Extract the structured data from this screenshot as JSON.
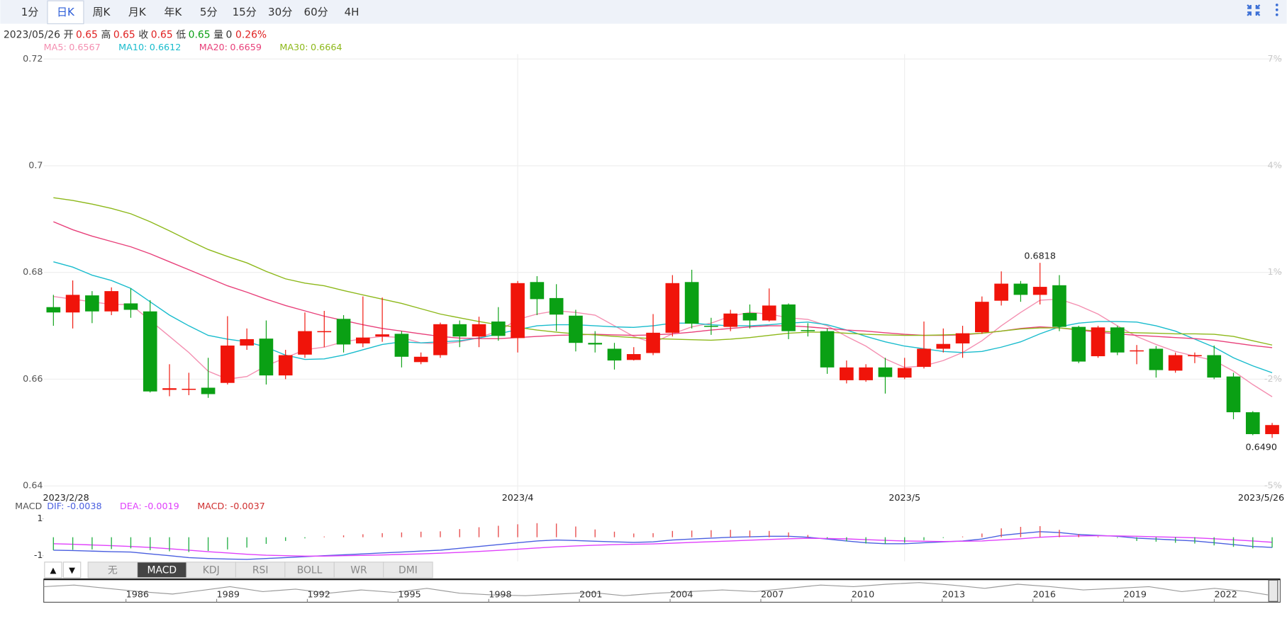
{
  "tabs": {
    "items": [
      "1分",
      "日K",
      "周K",
      "月K",
      "年K",
      "5分",
      "15分",
      "30分",
      "60分",
      "4H"
    ],
    "selected": "日K"
  },
  "ohlc_header": {
    "date": "2023/05/26",
    "items": [
      {
        "label": "开",
        "value": "0.65",
        "color": "#e02020"
      },
      {
        "label": "高",
        "value": "0.65",
        "color": "#e02020"
      },
      {
        "label": "收",
        "value": "0.65",
        "color": "#e02020"
      },
      {
        "label": "低",
        "value": "0.65",
        "color": "#0aa014"
      },
      {
        "label": "量",
        "value": "0",
        "color": "#333333"
      }
    ],
    "change": "0.26%",
    "change_color": "#e02020"
  },
  "chart_data": [
    {
      "type": "candlestick",
      "categories": [
        "2023/2/28",
        null,
        null,
        null,
        null,
        null,
        null,
        null,
        null,
        null,
        null,
        null,
        null,
        null,
        null,
        null,
        null,
        null,
        null,
        null,
        null,
        null,
        null,
        null,
        "2023/4",
        null,
        null,
        null,
        null,
        null,
        null,
        null,
        null,
        null,
        null,
        null,
        null,
        null,
        null,
        null,
        null,
        null,
        null,
        null,
        "2023/5",
        null,
        null,
        null,
        null,
        null,
        null,
        null,
        null,
        null,
        null,
        null,
        null,
        null,
        null,
        null,
        null,
        null,
        null,
        "2023/5/26"
      ],
      "open": [
        0.6735,
        0.6725,
        0.6757,
        0.6727,
        0.6742,
        0.6727,
        0.658,
        0.658,
        0.6584,
        0.6593,
        0.6663,
        0.6676,
        0.6607,
        0.6646,
        0.6688,
        0.6713,
        0.6667,
        0.668,
        0.6685,
        0.6632,
        0.6645,
        0.6703,
        0.668,
        0.6708,
        0.6677,
        0.6782,
        0.6752,
        0.6719,
        0.6668,
        0.6657,
        0.6636,
        0.6649,
        0.6687,
        0.6782,
        0.67,
        0.6698,
        0.6724,
        0.671,
        0.674,
        0.6692,
        0.669,
        0.6598,
        0.6598,
        0.6622,
        0.6603,
        0.6623,
        0.6657,
        0.6667,
        0.6688,
        0.6747,
        0.6779,
        0.6758,
        0.6776,
        0.6698,
        0.6643,
        0.6697,
        0.6652,
        0.6657,
        0.6616,
        0.6643,
        0.6645,
        0.6605,
        0.6538,
        0.6497
      ],
      "high": [
        0.6758,
        0.6785,
        0.6765,
        0.6772,
        0.677,
        0.6748,
        0.6628,
        0.6612,
        0.664,
        0.6718,
        0.6695,
        0.671,
        0.6655,
        0.6725,
        0.6728,
        0.672,
        0.6755,
        0.6753,
        0.669,
        0.665,
        0.6706,
        0.671,
        0.6717,
        0.6735,
        0.6784,
        0.6793,
        0.6778,
        0.673,
        0.669,
        0.6668,
        0.666,
        0.6722,
        0.6795,
        0.6805,
        0.6715,
        0.673,
        0.674,
        0.677,
        0.6742,
        0.6705,
        0.6695,
        0.6635,
        0.6628,
        0.664,
        0.664,
        0.6708,
        0.6695,
        0.67,
        0.6755,
        0.6802,
        0.6784,
        0.6818,
        0.6795,
        0.67,
        0.67,
        0.67,
        0.6664,
        0.6662,
        0.665,
        0.665,
        0.6663,
        0.6612,
        0.654,
        0.6518
      ],
      "low": [
        0.67,
        0.6695,
        0.6705,
        0.672,
        0.6715,
        0.6575,
        0.6568,
        0.657,
        0.6565,
        0.659,
        0.6655,
        0.659,
        0.66,
        0.664,
        0.666,
        0.665,
        0.666,
        0.667,
        0.6622,
        0.6628,
        0.664,
        0.666,
        0.666,
        0.6672,
        0.665,
        0.672,
        0.669,
        0.6652,
        0.665,
        0.6618,
        0.6635,
        0.6645,
        0.668,
        0.6695,
        0.6683,
        0.669,
        0.6695,
        0.6708,
        0.6675,
        0.668,
        0.661,
        0.6592,
        0.6595,
        0.6573,
        0.66,
        0.662,
        0.665,
        0.664,
        0.6685,
        0.6738,
        0.6745,
        0.674,
        0.669,
        0.663,
        0.664,
        0.6645,
        0.6628,
        0.6603,
        0.6612,
        0.663,
        0.66,
        0.6525,
        0.6495,
        0.649
      ],
      "close": [
        0.6725,
        0.6758,
        0.6727,
        0.6765,
        0.673,
        0.6577,
        0.6583,
        0.6582,
        0.6572,
        0.6663,
        0.6675,
        0.6607,
        0.6645,
        0.669,
        0.669,
        0.6665,
        0.6678,
        0.6684,
        0.6642,
        0.6642,
        0.6703,
        0.668,
        0.6703,
        0.6681,
        0.678,
        0.675,
        0.6721,
        0.6668,
        0.6665,
        0.6635,
        0.6647,
        0.6687,
        0.678,
        0.6704,
        0.6698,
        0.6723,
        0.671,
        0.6738,
        0.669,
        0.669,
        0.6622,
        0.6622,
        0.6622,
        0.6604,
        0.6621,
        0.6657,
        0.6666,
        0.6686,
        0.6745,
        0.6779,
        0.6758,
        0.6773,
        0.6698,
        0.6633,
        0.6697,
        0.665,
        0.6654,
        0.6617,
        0.6645,
        0.6645,
        0.6603,
        0.6538,
        0.6497,
        0.6514
      ],
      "up_color": "#f0140a",
      "down_color": "#0aa014",
      "ylim": [
        0.64,
        0.72
      ],
      "yticks": [
        0.64,
        0.66,
        0.68,
        0.7,
        0.72
      ],
      "y2lim": [
        -5,
        7
      ],
      "y2ticks": [
        {
          "value": 7,
          "label": "7%"
        },
        {
          "value": 4,
          "label": "4%"
        },
        {
          "value": 1,
          "label": "1%"
        },
        {
          "value": -2,
          "label": "-2%"
        },
        {
          "value": -5,
          "label": "-5%"
        }
      ],
      "grid": true,
      "series": [
        {
          "name": "MA5:",
          "color": "#f48fb1",
          "values": [
            0.6755,
            0.675,
            0.6745,
            0.674,
            0.674,
            0.671,
            0.668,
            0.665,
            0.6615,
            0.66,
            0.6605,
            0.6625,
            0.664,
            0.6655,
            0.666,
            0.667,
            0.6676,
            0.668,
            0.6678,
            0.6668,
            0.6666,
            0.667,
            0.6678,
            0.669,
            0.6712,
            0.6722,
            0.6728,
            0.6725,
            0.672,
            0.67,
            0.668,
            0.6668,
            0.6685,
            0.6698,
            0.6705,
            0.6718,
            0.6725,
            0.6722,
            0.6715,
            0.6712,
            0.67,
            0.668,
            0.6662,
            0.6638,
            0.6622,
            0.6625,
            0.6635,
            0.665,
            0.6672,
            0.67,
            0.6725,
            0.6748,
            0.675,
            0.6738,
            0.6722,
            0.67,
            0.668,
            0.6665,
            0.6652,
            0.6643,
            0.6635,
            0.6615,
            0.659,
            0.6567
          ]
        },
        {
          "name": "MA10:",
          "color": "#19bccd",
          "values": [
            0.682,
            0.681,
            0.6795,
            0.6785,
            0.677,
            0.6745,
            0.672,
            0.67,
            0.6682,
            0.6675,
            0.667,
            0.666,
            0.6645,
            0.6637,
            0.6638,
            0.6645,
            0.6655,
            0.6665,
            0.667,
            0.6668,
            0.667,
            0.6672,
            0.6677,
            0.6685,
            0.6693,
            0.67,
            0.6702,
            0.6702,
            0.67,
            0.6698,
            0.6697,
            0.67,
            0.6705,
            0.6705,
            0.6702,
            0.67,
            0.67,
            0.6702,
            0.6705,
            0.6707,
            0.6702,
            0.6692,
            0.668,
            0.667,
            0.6662,
            0.6657,
            0.6652,
            0.665,
            0.6652,
            0.666,
            0.667,
            0.6685,
            0.6698,
            0.6705,
            0.6708,
            0.6708,
            0.6707,
            0.67,
            0.669,
            0.6675,
            0.666,
            0.664,
            0.6625,
            0.6612
          ]
        },
        {
          "name": "MA20:",
          "color": "#e8407a",
          "values": [
            0.6895,
            0.688,
            0.6868,
            0.6858,
            0.6848,
            0.6835,
            0.682,
            0.6805,
            0.679,
            0.6775,
            0.6763,
            0.675,
            0.6738,
            0.6728,
            0.6718,
            0.671,
            0.6702,
            0.6695,
            0.669,
            0.6685,
            0.668,
            0.6677,
            0.6676,
            0.6676,
            0.6678,
            0.668,
            0.6682,
            0.6683,
            0.6684,
            0.6683,
            0.6682,
            0.6683,
            0.6685,
            0.6688,
            0.6692,
            0.6695,
            0.6698,
            0.67,
            0.67,
            0.6698,
            0.6695,
            0.6692,
            0.669,
            0.6687,
            0.6684,
            0.6682,
            0.6682,
            0.6683,
            0.6686,
            0.669,
            0.6695,
            0.6698,
            0.6696,
            0.6692,
            0.6688,
            0.6685,
            0.6682,
            0.668,
            0.6678,
            0.6676,
            0.6673,
            0.6668,
            0.6663,
            0.6659
          ]
        },
        {
          "name": "MA30:",
          "color": "#8db81a",
          "values": [
            0.694,
            0.6935,
            0.6928,
            0.692,
            0.691,
            0.6895,
            0.6878,
            0.686,
            0.6843,
            0.683,
            0.6818,
            0.6802,
            0.6788,
            0.678,
            0.6775,
            0.6766,
            0.6758,
            0.675,
            0.6742,
            0.6732,
            0.6722,
            0.6715,
            0.6708,
            0.6702,
            0.6697,
            0.6692,
            0.6688,
            0.6685,
            0.6683,
            0.668,
            0.6678,
            0.6676,
            0.6675,
            0.6674,
            0.6673,
            0.6675,
            0.6678,
            0.6682,
            0.6686,
            0.6688,
            0.6688,
            0.6686,
            0.6684,
            0.6683,
            0.6682,
            0.6682,
            0.6683,
            0.6684,
            0.6686,
            0.669,
            0.6694,
            0.6696,
            0.6696,
            0.6693,
            0.669,
            0.6688,
            0.6687,
            0.6686,
            0.6685,
            0.6685,
            0.6684,
            0.668,
            0.6672,
            0.6664
          ]
        }
      ],
      "annotations": [
        {
          "value": 0.6818,
          "label": "0.6818"
        },
        {
          "value": 0.649,
          "label": "0.6490"
        }
      ]
    },
    {
      "type": "macd",
      "title": "MACD",
      "ylim": [
        -1.3,
        1.27
      ],
      "yticks": [
        1,
        -1
      ],
      "series": [
        {
          "name": "DIF: -0.0038",
          "color": "#4a5fe0",
          "type": "line",
          "values": [
            -0.7,
            -0.72,
            -0.75,
            -0.78,
            -0.8,
            -0.9,
            -1.0,
            -1.1,
            -1.15,
            -1.18,
            -1.2,
            -1.15,
            -1.1,
            -1.05,
            -1.0,
            -0.95,
            -0.9,
            -0.85,
            -0.8,
            -0.75,
            -0.7,
            -0.6,
            -0.5,
            -0.4,
            -0.3,
            -0.2,
            -0.15,
            -0.18,
            -0.22,
            -0.25,
            -0.28,
            -0.25,
            -0.15,
            -0.1,
            -0.05,
            0,
            0.02,
            0.05,
            0.05,
            0,
            -0.1,
            -0.2,
            -0.3,
            -0.35,
            -0.35,
            -0.3,
            -0.25,
            -0.2,
            -0.1,
            0.1,
            0.2,
            0.3,
            0.25,
            0.15,
            0.1,
            0.05,
            -0.05,
            -0.1,
            -0.15,
            -0.2,
            -0.3,
            -0.4,
            -0.5,
            -0.55
          ]
        },
        {
          "name": "DEA: -0.0019",
          "color": "#e040fb",
          "type": "line",
          "values": [
            -0.35,
            -0.38,
            -0.42,
            -0.46,
            -0.5,
            -0.55,
            -0.62,
            -0.7,
            -0.78,
            -0.85,
            -0.92,
            -0.97,
            -1.0,
            -1.02,
            -1.02,
            -1.0,
            -0.98,
            -0.96,
            -0.93,
            -0.9,
            -0.86,
            -0.82,
            -0.77,
            -0.71,
            -0.65,
            -0.58,
            -0.52,
            -0.47,
            -0.43,
            -0.4,
            -0.38,
            -0.36,
            -0.32,
            -0.28,
            -0.24,
            -0.2,
            -0.16,
            -0.12,
            -0.08,
            -0.06,
            -0.07,
            -0.09,
            -0.13,
            -0.17,
            -0.2,
            -0.22,
            -0.23,
            -0.22,
            -0.2,
            -0.14,
            -0.08,
            0,
            0.05,
            0.07,
            0.08,
            0.07,
            0.05,
            0.02,
            0,
            -0.03,
            -0.08,
            -0.14,
            -0.2,
            -0.27
          ]
        },
        {
          "name": "MACD: -0.0037",
          "color": "#d03030",
          "type": "bar",
          "up_color": "#e85050",
          "down_color": "#2bb24c",
          "values": [
            -0.7,
            -0.68,
            -0.66,
            -0.64,
            -0.6,
            -0.7,
            -0.76,
            -0.8,
            -0.74,
            -0.66,
            -0.56,
            -0.36,
            -0.2,
            -0.06,
            0.04,
            0.1,
            0.16,
            0.22,
            0.26,
            0.3,
            0.32,
            0.44,
            0.54,
            0.62,
            0.7,
            0.76,
            0.74,
            0.58,
            0.42,
            0.3,
            0.2,
            0.22,
            0.34,
            0.36,
            0.38,
            0.4,
            0.36,
            0.34,
            0.26,
            0.12,
            -0.06,
            -0.22,
            -0.34,
            -0.36,
            -0.3,
            -0.16,
            -0.04,
            0.04,
            0.2,
            0.48,
            0.56,
            0.6,
            0.4,
            0.16,
            0.04,
            -0.04,
            -0.2,
            -0.24,
            -0.3,
            -0.34,
            -0.44,
            -0.52,
            -0.6,
            -0.56
          ]
        }
      ]
    }
  ],
  "indicator_tabs": {
    "arrows": [
      "▲",
      "▼"
    ],
    "items": [
      "无",
      "MACD",
      "KDJ",
      "RSI",
      "BOLL",
      "WR",
      "DMI"
    ],
    "selected": "MACD"
  },
  "navigator": {
    "xlim": [
      1982.9,
      2023.8
    ],
    "xticks": [
      1986,
      1989,
      1992,
      1995,
      1998,
      2001,
      2004,
      2007,
      2010,
      2013,
      2016,
      2019,
      2022
    ]
  }
}
